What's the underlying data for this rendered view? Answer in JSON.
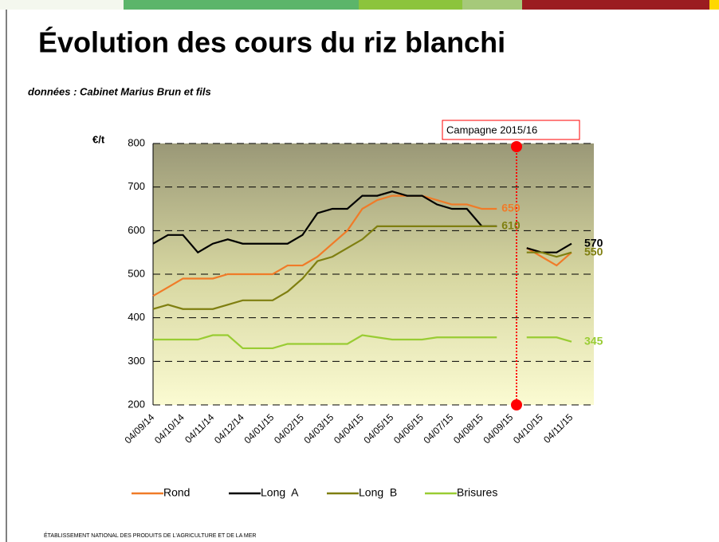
{
  "chart_data": {
    "type": "line",
    "title": "Évolution des cours du riz blanchi",
    "subtitle": "données : Cabinet Marius Brun et fils",
    "footer": "ÉTABLISSEMENT NATIONAL DES PRODUITS DE L'AGRICULTURE ET DE LA MER",
    "y_label": "€/t",
    "categories": [
      "04/09/14",
      null,
      "04/10/14",
      null,
      "04/11/14",
      null,
      "04/12/14",
      null,
      "04/01/15",
      null,
      "04/02/15",
      null,
      "04/03/15",
      null,
      "04/04/15",
      null,
      "04/05/15",
      null,
      "04/06/15",
      null,
      "04/07/15",
      null,
      "04/08/15",
      null,
      "04/09/15",
      null,
      "04/10/15",
      null,
      "04/11/15"
    ],
    "series": [
      {
        "name": "Rond",
        "color": "#f07b28",
        "values": [
          450,
          470,
          490,
          490,
          490,
          500,
          500,
          500,
          500,
          520,
          520,
          540,
          570,
          600,
          650,
          670,
          680,
          680,
          680,
          670,
          660,
          660,
          650,
          650,
          null,
          560,
          540,
          520,
          550
        ]
      },
      {
        "name": "Long  A",
        "color": "#000000",
        "values": [
          570,
          590,
          590,
          550,
          570,
          580,
          570,
          570,
          570,
          570,
          590,
          640,
          650,
          650,
          680,
          680,
          690,
          680,
          680,
          660,
          650,
          650,
          610,
          610,
          null,
          560,
          550,
          550,
          570
        ]
      },
      {
        "name": "Long  B",
        "color": "#7f7f10",
        "values": [
          420,
          430,
          420,
          420,
          420,
          430,
          440,
          440,
          440,
          460,
          490,
          530,
          540,
          560,
          580,
          610,
          610,
          610,
          610,
          610,
          610,
          610,
          610,
          610,
          null,
          550,
          550,
          540,
          550
        ]
      },
      {
        "name": "Brisures",
        "color": "#99cc33",
        "values": [
          350,
          350,
          350,
          350,
          360,
          360,
          330,
          330,
          330,
          340,
          340,
          340,
          340,
          340,
          360,
          355,
          350,
          350,
          350,
          355,
          355,
          355,
          355,
          355,
          null,
          355,
          355,
          355,
          345
        ]
      }
    ],
    "annotations": [
      {
        "series": "Rond",
        "at": 23,
        "text": "650"
      },
      {
        "series": "Long  B",
        "at": 23,
        "text": "610"
      },
      {
        "series": "Long  A",
        "at": 28,
        "text": "570"
      },
      {
        "series": "Long  B",
        "at": 28,
        "text": "550"
      },
      {
        "series": "Brisures",
        "at": 28,
        "text": "345"
      }
    ],
    "campaign": {
      "label": "Campagne 2015/16",
      "at": "04/09/15",
      "color": "#ff0000"
    },
    "ylim": [
      200,
      800
    ],
    "yticks": [
      200,
      300,
      400,
      500,
      600,
      700,
      800
    ],
    "grid": true
  }
}
